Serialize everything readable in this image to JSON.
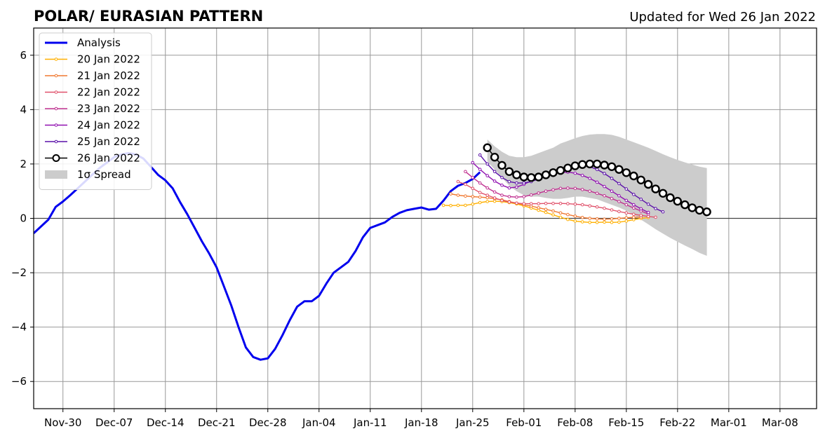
{
  "chart_data": {
    "type": "line",
    "title": "POLAR/ EURASIAN  PATTERN",
    "subtitle": "Updated for Wed 26 Jan 2022",
    "xlabel": "",
    "ylabel": "",
    "ylim": [
      -7,
      7
    ],
    "xlim": [
      "2021-11-26",
      "2022-03-13"
    ],
    "grid": true,
    "legend_placement": "upper-left",
    "x_ticks": [
      "2021-11-30",
      "2021-12-07",
      "2021-12-14",
      "2021-12-21",
      "2021-12-28",
      "2022-01-04",
      "2022-01-11",
      "2022-01-18",
      "2022-01-25",
      "2022-02-01",
      "2022-02-08",
      "2022-02-15",
      "2022-02-22",
      "2022-03-01",
      "2022-03-08"
    ],
    "x_tick_labels": [
      "Nov-30",
      "Dec-07",
      "Dec-14",
      "Dec-21",
      "Dec-28",
      "Jan-04",
      "Jan-11",
      "Jan-18",
      "Jan-25",
      "Feb-01",
      "Feb-08",
      "Feb-15",
      "Feb-22",
      "Mar-01",
      "Mar-08"
    ],
    "y_ticks": [
      -6,
      -4,
      -2,
      0,
      2,
      4,
      6
    ],
    "y_tick_labels": [
      "−6",
      "−4",
      "−2",
      "0",
      "2",
      "4",
      "6"
    ],
    "series": [
      {
        "name": "Analysis",
        "color": "#0000ee",
        "style": "thick-line",
        "start": "2021-11-26",
        "values": [
          -0.55,
          -0.3,
          -0.05,
          0.42,
          0.62,
          0.85,
          1.1,
          1.35,
          1.6,
          1.85,
          2.05,
          2.25,
          2.35,
          2.4,
          2.35,
          2.2,
          1.9,
          1.6,
          1.4,
          1.1,
          0.6,
          0.15,
          -0.35,
          -0.85,
          -1.3,
          -1.8,
          -2.5,
          -3.2,
          -4.0,
          -4.75,
          -5.1,
          -5.2,
          -5.15,
          -4.8,
          -4.3,
          -3.75,
          -3.25,
          -3.05,
          -3.05,
          -2.85,
          -2.4,
          -2.0,
          -1.8,
          -1.6,
          -1.2,
          -0.7,
          -0.35,
          -0.25,
          -0.15,
          0.05,
          0.2,
          0.3,
          0.35,
          0.4,
          0.32,
          0.35,
          0.65,
          1.0,
          1.2,
          1.3,
          1.45,
          1.7
        ]
      },
      {
        "name": "20 Jan 2022",
        "color": "#ffb000",
        "style": "dotted-line",
        "start": "2022-01-21",
        "values": [
          0.48,
          0.47,
          0.48,
          0.48,
          0.52,
          0.58,
          0.62,
          0.63,
          0.62,
          0.58,
          0.53,
          0.46,
          0.38,
          0.3,
          0.22,
          0.13,
          0.04,
          -0.04,
          -0.1,
          -0.13,
          -0.15,
          -0.15,
          -0.14,
          -0.15,
          -0.14,
          -0.1,
          -0.05,
          0.0,
          0.03
        ]
      },
      {
        "name": "21 Jan 2022",
        "color": "#f07830",
        "style": "dotted-line",
        "start": "2022-01-22",
        "values": [
          0.9,
          0.85,
          0.82,
          0.8,
          0.78,
          0.76,
          0.72,
          0.68,
          0.62,
          0.56,
          0.5,
          0.45,
          0.39,
          0.33,
          0.27,
          0.2,
          0.14,
          0.08,
          0.03,
          0.0,
          -0.02,
          -0.03,
          -0.02,
          0.0,
          0.02,
          0.04,
          0.05
        ]
      },
      {
        "name": "22 Jan 2022",
        "color": "#e0506a",
        "style": "dotted-line",
        "start": "2022-01-23",
        "values": [
          1.35,
          1.25,
          1.1,
          0.95,
          0.85,
          0.75,
          0.66,
          0.6,
          0.56,
          0.54,
          0.54,
          0.54,
          0.55,
          0.55,
          0.55,
          0.54,
          0.52,
          0.5,
          0.46,
          0.42,
          0.37,
          0.31,
          0.25,
          0.2,
          0.15,
          0.11,
          0.07,
          0.04
        ]
      },
      {
        "name": "23 Jan 2022",
        "color": "#c03090",
        "style": "dotted-line",
        "start": "2022-01-24",
        "values": [
          1.72,
          1.5,
          1.3,
          1.12,
          0.97,
          0.85,
          0.8,
          0.78,
          0.8,
          0.86,
          0.93,
          1.0,
          1.05,
          1.1,
          1.11,
          1.1,
          1.06,
          1.0,
          0.92,
          0.83,
          0.73,
          0.62,
          0.5,
          0.38,
          0.27,
          0.16
        ]
      },
      {
        "name": "24 Jan 2022",
        "color": "#9010b0",
        "style": "dotted-line",
        "start": "2022-01-25",
        "values": [
          2.05,
          1.8,
          1.57,
          1.37,
          1.22,
          1.12,
          1.15,
          1.25,
          1.38,
          1.5,
          1.6,
          1.66,
          1.69,
          1.7,
          1.66,
          1.58,
          1.47,
          1.33,
          1.17,
          1.0,
          0.83,
          0.66,
          0.5,
          0.35,
          0.22
        ]
      },
      {
        "name": "25 Jan 2022",
        "color": "#5a10a8",
        "style": "dotted-line",
        "start": "2022-01-26",
        "values": [
          2.33,
          2.0,
          1.72,
          1.5,
          1.35,
          1.3,
          1.3,
          1.35,
          1.45,
          1.58,
          1.7,
          1.82,
          1.9,
          1.95,
          1.95,
          1.9,
          1.8,
          1.65,
          1.47,
          1.28,
          1.08,
          0.88,
          0.7,
          0.52,
          0.36,
          0.24
        ]
      },
      {
        "name": "26 Jan 2022",
        "color": "#000000",
        "style": "open-circles",
        "start": "2022-01-27",
        "values": [
          2.6,
          2.25,
          1.95,
          1.72,
          1.6,
          1.52,
          1.5,
          1.52,
          1.6,
          1.68,
          1.76,
          1.85,
          1.93,
          1.98,
          2.0,
          2.0,
          1.96,
          1.9,
          1.8,
          1.68,
          1.56,
          1.41,
          1.25,
          1.08,
          0.92,
          0.76,
          0.63,
          0.5,
          0.39,
          0.3,
          0.24
        ]
      }
    ],
    "spread": {
      "name": "1σ Spread",
      "color": "#cccccc",
      "start": "2022-01-27",
      "upper": [
        2.9,
        2.65,
        2.45,
        2.3,
        2.25,
        2.25,
        2.3,
        2.4,
        2.5,
        2.6,
        2.75,
        2.85,
        2.95,
        3.03,
        3.08,
        3.1,
        3.1,
        3.07,
        3.0,
        2.9,
        2.8,
        2.7,
        2.6,
        2.48,
        2.36,
        2.25,
        2.15,
        2.06,
        1.98,
        1.9,
        1.85
      ],
      "lower": [
        2.1,
        1.8,
        1.5,
        1.2,
        1.0,
        0.85,
        0.8,
        0.8,
        0.75,
        0.72,
        0.72,
        0.75,
        0.8,
        0.8,
        0.75,
        0.7,
        0.6,
        0.5,
        0.4,
        0.28,
        0.13,
        -0.05,
        -0.22,
        -0.4,
        -0.56,
        -0.72,
        -0.86,
        -1.0,
        -1.13,
        -1.27,
        -1.38
      ]
    }
  }
}
